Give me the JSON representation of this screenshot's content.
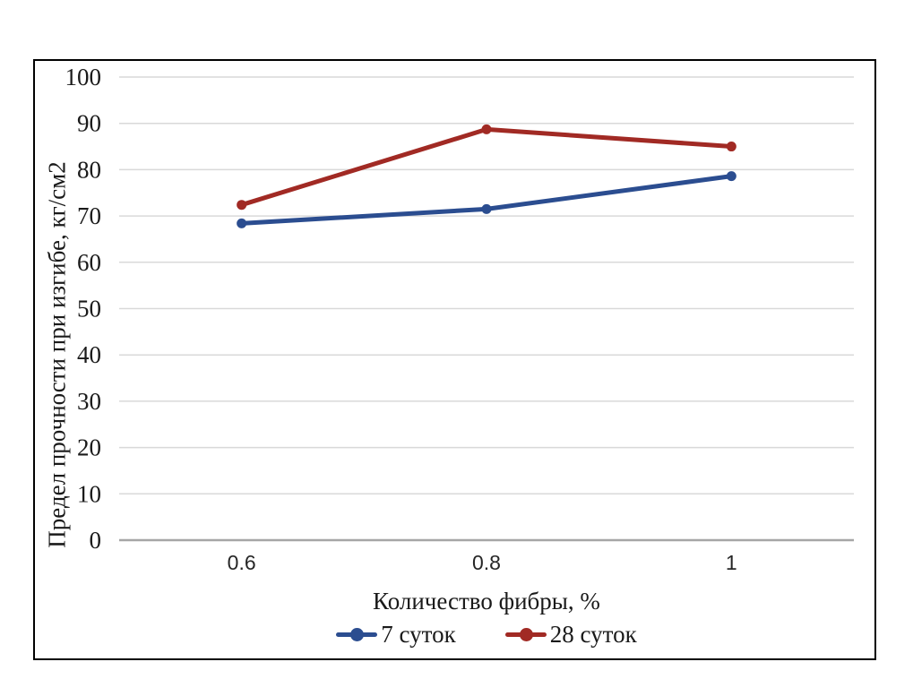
{
  "page": {
    "background_color": "#ffffff",
    "frame_border_color": "#000000"
  },
  "chart_data": {
    "type": "line",
    "categories": [
      "0.6",
      "0.8",
      "1"
    ],
    "series": [
      {
        "name": "7 суток",
        "color": "#2b4d90",
        "values": [
          68.4,
          71.5,
          78.6
        ]
      },
      {
        "name": "28 суток",
        "color": "#a12a24",
        "values": [
          72.4,
          88.7,
          85.0
        ]
      }
    ],
    "xlabel": "Количество фибры, %",
    "ylabel": "Предел прочности при изгибе, кг/см2",
    "ylim": [
      0,
      100
    ],
    "ytick_step": 10,
    "grid": true,
    "gridline_color": "#d9d9d9",
    "axis_line_color": "#a6a6a6",
    "text_color": "#1a1a1a",
    "legend_position": "bottom"
  }
}
